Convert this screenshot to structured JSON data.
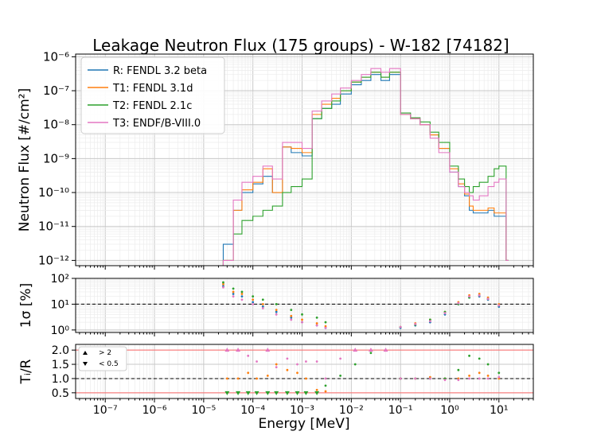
{
  "chart_data": [
    {
      "type": "line",
      "title": "Leakage Neutron Flux (175 groups) - W-182 [74182]",
      "ylabel": "Neutron Flux [#/cm²]",
      "xlabel": "",
      "x_scale": "log",
      "y_scale": "log",
      "xlim": [
        2.5e-08,
        50
      ],
      "ylim": [
        7e-13,
        1.2e-06
      ],
      "x_ticks": [
        "10⁻⁷",
        "10⁻⁶",
        "10⁻⁵",
        "10⁻⁴",
        "10⁻³",
        "10⁻²",
        "10⁻¹",
        "10⁰",
        "10¹"
      ],
      "y_ticks": [
        "10⁻¹²",
        "10⁻¹¹",
        "10⁻¹⁰",
        "10⁻⁹",
        "10⁻⁸",
        "10⁻⁷",
        "10⁻⁶"
      ],
      "grid": true,
      "legend_position": "top-left",
      "series": [
        {
          "name": "R: FENDL 3.2 beta",
          "color": "#1f77b4",
          "x": [
            2.5e-05,
            4e-05,
            6e-05,
            0.0001,
            0.00016,
            0.00025,
            0.0004,
            0.0006,
            0.001,
            0.0016,
            0.0025,
            0.004,
            0.006,
            0.01,
            0.016,
            0.025,
            0.04,
            0.06,
            0.1,
            0.16,
            0.25,
            0.4,
            0.6,
            1,
            1.5,
            2,
            2.5,
            3,
            4,
            6,
            8,
            10,
            14
          ],
          "y": [
            3e-12,
            3e-11,
            1e-10,
            1.8e-10,
            3e-10,
            1e-10,
            2.2e-09,
            1.5e-09,
            1.2e-09,
            1.5e-08,
            3e-08,
            4e-08,
            8e-08,
            1.5e-07,
            2e-07,
            3e-07,
            2e-07,
            3e-07,
            2e-08,
            1.5e-08,
            1e-08,
            5e-09,
            2e-09,
            4e-10,
            1.5e-10,
            8e-11,
            3e-11,
            2.5e-11,
            2.5e-11,
            3e-11,
            2e-11,
            2e-11,
            1e-12
          ]
        },
        {
          "name": "T1: FENDL 3.1d",
          "color": "#ff7f0e",
          "x": [
            2.5e-05,
            4e-05,
            6e-05,
            0.0001,
            0.00016,
            0.00025,
            0.0004,
            0.0006,
            0.001,
            0.0016,
            0.0025,
            0.004,
            0.006,
            0.01,
            0.016,
            0.025,
            0.04,
            0.06,
            0.1,
            0.16,
            0.25,
            0.4,
            0.6,
            1,
            1.5,
            2,
            2.5,
            3,
            4,
            6,
            8,
            10,
            14
          ],
          "y": [
            1e-12,
            3e-11,
            1.2e-10,
            2e-10,
            5e-10,
            1e-10,
            2.2e-09,
            2e-09,
            1.5e-09,
            2e-08,
            4e-08,
            6e-08,
            1e-07,
            1.8e-07,
            2.5e-07,
            3.5e-07,
            2.5e-07,
            3.5e-07,
            2e-08,
            1.5e-08,
            1e-08,
            5e-09,
            2e-09,
            5e-10,
            1.8e-10,
            9e-11,
            4e-11,
            3e-11,
            3e-11,
            3.5e-11,
            2.5e-11,
            2.5e-11,
            1e-12
          ]
        },
        {
          "name": "T2: FENDL 2.1c",
          "color": "#2ca02c",
          "x": [
            2.5e-05,
            4e-05,
            6e-05,
            0.0001,
            0.00016,
            0.00025,
            0.0004,
            0.0006,
            0.001,
            0.0016,
            0.0025,
            0.004,
            0.006,
            0.01,
            0.016,
            0.025,
            0.04,
            0.06,
            0.1,
            0.16,
            0.25,
            0.4,
            0.6,
            1,
            1.5,
            2,
            2.5,
            3,
            4,
            6,
            8,
            10,
            14
          ],
          "y": [
            1e-12,
            6e-12,
            1.5e-11,
            2e-11,
            3e-11,
            4e-11,
            1e-10,
            1.5e-10,
            2.5e-10,
            1.5e-08,
            3e-08,
            5e-08,
            1e-07,
            1.8e-07,
            2.5e-07,
            3.5e-07,
            2.5e-07,
            3.5e-07,
            2.2e-08,
            1.6e-08,
            1.2e-08,
            6e-09,
            3e-09,
            6e-10,
            2.5e-10,
            1.5e-10,
            1e-10,
            1.5e-10,
            2e-10,
            3e-10,
            5e-10,
            6e-10,
            1e-12
          ]
        },
        {
          "name": "T3: ENDF/B-VIII.0",
          "color": "#e377c2",
          "x": [
            2.5e-05,
            4e-05,
            6e-05,
            0.0001,
            0.00016,
            0.00025,
            0.0004,
            0.0006,
            0.001,
            0.0016,
            0.0025,
            0.004,
            0.006,
            0.01,
            0.016,
            0.025,
            0.04,
            0.06,
            0.1,
            0.16,
            0.25,
            0.4,
            0.6,
            1,
            1.5,
            2,
            2.5,
            3,
            4,
            6,
            8,
            10,
            14
          ],
          "y": [
            1e-12,
            6e-11,
            2e-10,
            3e-10,
            6e-10,
            2.5e-10,
            3e-09,
            3e-09,
            2e-09,
            2.5e-08,
            5e-08,
            8e-08,
            1.2e-07,
            2e-07,
            3e-07,
            4.5e-07,
            3.5e-07,
            4.5e-07,
            2e-08,
            1.5e-08,
            1e-08,
            4e-09,
            1.5e-09,
            4e-10,
            1.5e-10,
            1e-10,
            8e-11,
            6e-11,
            8e-11,
            1.5e-10,
            2e-10,
            2.5e-10,
            1e-12
          ]
        }
      ]
    },
    {
      "type": "scatter",
      "ylabel": "1σ [%]",
      "x_scale": "log",
      "y_scale": "log",
      "xlim": [
        2.5e-08,
        50
      ],
      "ylim": [
        0.8,
        100
      ],
      "y_ticks": [
        "10⁰",
        "10¹",
        "10²"
      ],
      "reference_line": 10,
      "series": [
        {
          "name": "R: FENDL 3.2 beta",
          "color": "#1f77b4",
          "x": [
            2.5e-05,
            4e-05,
            6e-05,
            0.0001,
            0.00016,
            0.0003,
            0.0006,
            0.001,
            0.002,
            0.003,
            0.1,
            0.2,
            0.4,
            0.8,
            1.5,
            2.5,
            4,
            6,
            10
          ],
          "y": [
            50,
            25,
            20,
            12,
            8,
            5,
            3,
            2,
            1.5,
            1.2,
            1.2,
            1.5,
            2,
            4,
            10,
            18,
            20,
            15,
            8
          ]
        },
        {
          "name": "T1: FENDL 3.1d",
          "color": "#ff7f0e",
          "x": [
            2.5e-05,
            4e-05,
            6e-05,
            0.0001,
            0.00016,
            0.0003,
            0.0006,
            0.001,
            0.002,
            0.003,
            0.1,
            0.2,
            0.4,
            0.8,
            1.5,
            2.5,
            4,
            6,
            10
          ],
          "y": [
            60,
            30,
            25,
            15,
            10,
            6,
            3.5,
            2.5,
            1.8,
            1.4,
            1.3,
            1.8,
            2.5,
            5,
            12,
            22,
            25,
            18,
            10
          ]
        },
        {
          "name": "T2: FENDL 2.1c",
          "color": "#2ca02c",
          "x": [
            2.5e-05,
            4e-05,
            6e-05,
            0.0001,
            0.00016,
            0.0003,
            0.0006,
            0.001,
            0.002,
            0.003,
            0.1,
            0.2,
            0.4,
            0.8,
            1.5,
            2.5,
            4,
            6,
            10
          ],
          "y": [
            70,
            40,
            30,
            20,
            15,
            10,
            6,
            4,
            3,
            2,
            1.3,
            1.6,
            2.5,
            5,
            10,
            18,
            22,
            16,
            9
          ]
        },
        {
          "name": "T3: ENDF/B-VIII.0",
          "color": "#e377c2",
          "x": [
            2.5e-05,
            4e-05,
            6e-05,
            0.0001,
            0.00016,
            0.0003,
            0.0006,
            0.001,
            0.002,
            0.003,
            0.1,
            0.2,
            0.4,
            0.8,
            1.5,
            2.5,
            4,
            6,
            10
          ],
          "y": [
            45,
            20,
            15,
            10,
            7,
            4,
            2.5,
            2,
            1.5,
            1.2,
            1.3,
            1.7,
            2.2,
            4.5,
            11,
            20,
            22,
            16,
            9
          ]
        }
      ]
    },
    {
      "type": "scatter",
      "ylabel": "Tᵢ/R",
      "xlabel": "Energy [MeV]",
      "x_scale": "log",
      "xlim": [
        2.5e-08,
        50
      ],
      "ylim": [
        0.3,
        2.2
      ],
      "y_ticks": [
        "0.5",
        "1.0",
        "1.5",
        "2.0"
      ],
      "reference_line": 1.0,
      "bound_lines": [
        0.5,
        2.0
      ],
      "legend": [
        "> 2",
        "< 0.5"
      ],
      "series": [
        {
          "name": "T1: FENDL 3.1d",
          "color": "#ff7f0e",
          "x": [
            3e-05,
            5e-05,
            8e-05,
            0.00012,
            0.0002,
            0.0003,
            0.0005,
            0.0008,
            0.0012,
            0.002,
            0.003,
            0.1,
            0.2,
            0.4,
            0.8,
            1.5,
            2.5,
            4,
            6,
            10
          ],
          "y": [
            1.0,
            1.0,
            1.2,
            1.0,
            1.1,
            1.5,
            1.3,
            1.2,
            1.0,
            0.6,
            0.55,
            1.0,
            1.0,
            1.05,
            1.0,
            1.0,
            1.1,
            1.2,
            1.1,
            1.0
          ]
        },
        {
          "name": "T2: FENDL 2.1c",
          "color": "#2ca02c",
          "x": [
            3e-05,
            5e-05,
            8e-05,
            0.00012,
            0.0002,
            0.0003,
            0.0005,
            0.0008,
            0.0012,
            0.002,
            0.003,
            0.006,
            0.012,
            0.025,
            0.1,
            0.2,
            0.4,
            0.8,
            1.5,
            2.5,
            4,
            6,
            10
          ],
          "y": [
            0.5,
            0.5,
            0.5,
            0.5,
            0.5,
            0.5,
            0.5,
            0.5,
            0.5,
            0.5,
            0.75,
            1.1,
            1.5,
            1.9,
            1.0,
            1.0,
            1.0,
            1.0,
            1.3,
            1.8,
            1.7,
            1.5,
            1.2
          ]
        },
        {
          "name": "T3: ENDF/B-VIII.0",
          "color": "#e377c2",
          "x": [
            3e-05,
            5e-05,
            8e-05,
            0.00012,
            0.0002,
            0.0003,
            0.0005,
            0.0008,
            0.0012,
            0.002,
            0.003,
            0.006,
            0.012,
            0.025,
            0.05,
            0.1,
            0.2,
            0.4,
            0.8,
            1.5,
            2.5,
            4,
            6,
            10
          ],
          "y": [
            2.0,
            2.0,
            1.8,
            1.6,
            2.0,
            1.4,
            1.7,
            1.5,
            1.6,
            1.6,
            1.0,
            1.7,
            2.0,
            2.0,
            2.0,
            1.0,
            1.0,
            1.0,
            0.95,
            0.95,
            1.0,
            1.0,
            1.0,
            1.05
          ]
        }
      ]
    }
  ]
}
